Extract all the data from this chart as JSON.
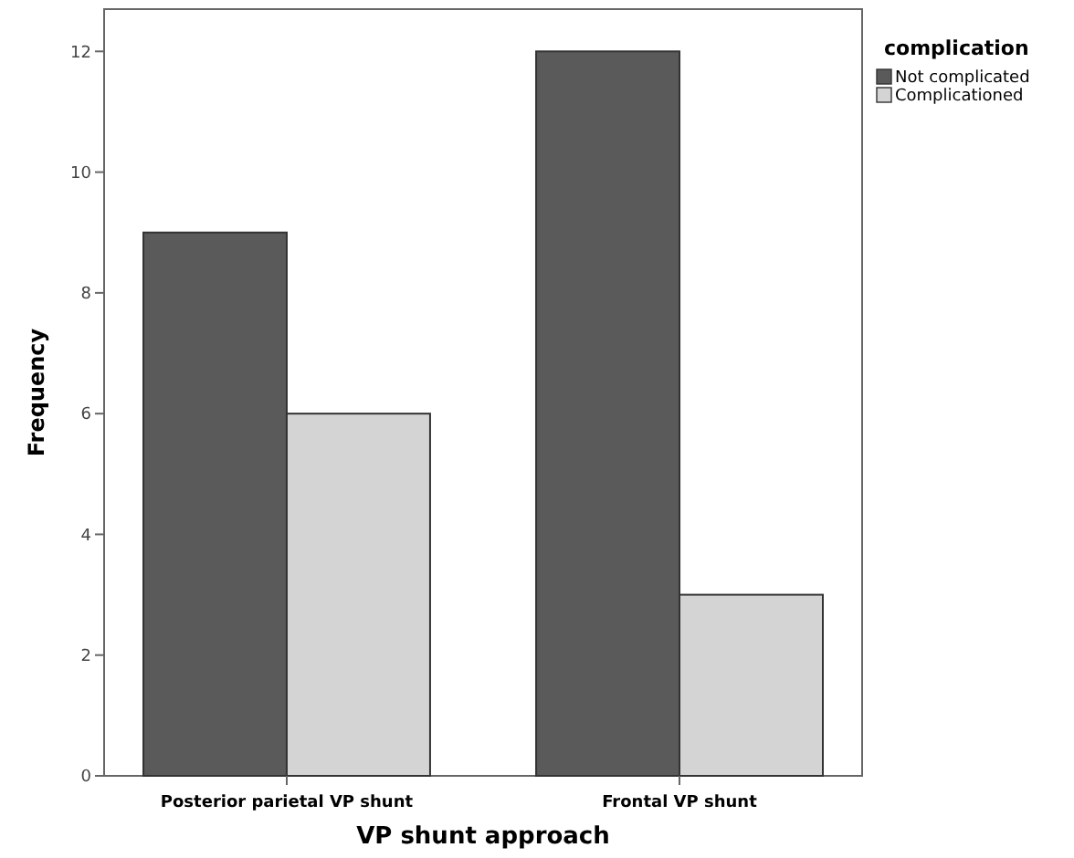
{
  "chart_data": {
    "type": "bar",
    "xlabel": "VP shunt approach",
    "ylabel": "Frequency",
    "legend_title": "complication",
    "legend": "top right",
    "categories": [
      "Posterior parietal VP shunt",
      "Frontal VP shunt"
    ],
    "series": [
      {
        "name": "Not complicated",
        "color": "#5a5a5a",
        "values": [
          9,
          12
        ]
      },
      {
        "name": "Complicationed",
        "color": "#d4d4d4",
        "values": [
          6,
          3
        ]
      }
    ],
    "ylim": [
      0,
      12.7
    ],
    "yticks": [
      0,
      2,
      4,
      6,
      8,
      10,
      12
    ]
  }
}
